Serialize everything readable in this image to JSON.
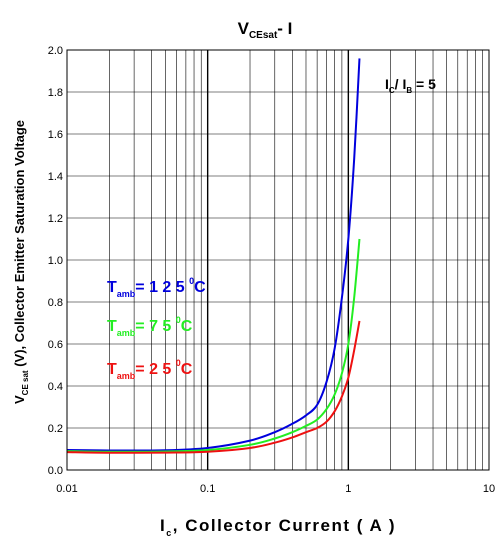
{
  "chart_data": {
    "type": "line",
    "title": {
      "main": "V",
      "sub": "CEsat",
      "rest": "- I"
    },
    "xlabel": {
      "main": "I",
      "sub": "c",
      "rest": ", Collector Current ( A )"
    },
    "ylabel": {
      "main": "V",
      "sub": "CE sat",
      "rest": " (V), Collector Emitter Saturation Voltage"
    },
    "xscale": "log",
    "xlim": [
      0.01,
      10
    ],
    "ylim": [
      0,
      2.0
    ],
    "xticks": [
      "0.01",
      "0.1",
      "1",
      "10"
    ],
    "yticks": [
      "0.0",
      "0.2",
      "0.4",
      "0.6",
      "0.8",
      "1.0",
      "1.2",
      "1.4",
      "1.6",
      "1.8",
      "2.0"
    ],
    "grid": true,
    "annotation": {
      "i1": "I",
      "s1": "C",
      "sep": "/ I",
      "s2": "B",
      "rest": " = 5"
    },
    "series": [
      {
        "name": "125",
        "color": "#0000dd",
        "label": {
          "t": "T",
          "sub": "amb",
          "val": "= 1 2 5 ",
          "deg": "0",
          "unit": "C"
        },
        "points": [
          [
            0.01,
            0.095
          ],
          [
            0.02,
            0.093
          ],
          [
            0.05,
            0.094
          ],
          [
            0.1,
            0.105
          ],
          [
            0.2,
            0.14
          ],
          [
            0.3,
            0.18
          ],
          [
            0.4,
            0.22
          ],
          [
            0.5,
            0.26
          ],
          [
            0.6,
            0.31
          ],
          [
            0.7,
            0.42
          ],
          [
            0.8,
            0.58
          ],
          [
            0.9,
            0.82
          ],
          [
            1.0,
            1.1
          ],
          [
            1.1,
            1.48
          ],
          [
            1.2,
            1.96
          ]
        ]
      },
      {
        "name": "75",
        "color": "#22ee22",
        "label": {
          "t": "T",
          "sub": "amb",
          "val": "=  7 5 ",
          "deg": "0",
          "unit": "C"
        },
        "points": [
          [
            0.01,
            0.09
          ],
          [
            0.02,
            0.087
          ],
          [
            0.05,
            0.088
          ],
          [
            0.1,
            0.095
          ],
          [
            0.2,
            0.12
          ],
          [
            0.3,
            0.15
          ],
          [
            0.4,
            0.18
          ],
          [
            0.5,
            0.21
          ],
          [
            0.6,
            0.24
          ],
          [
            0.7,
            0.29
          ],
          [
            0.8,
            0.36
          ],
          [
            0.9,
            0.46
          ],
          [
            1.0,
            0.6
          ],
          [
            1.1,
            0.82
          ],
          [
            1.2,
            1.1
          ]
        ]
      },
      {
        "name": "25",
        "color": "#ee1111",
        "label": {
          "t": "T",
          "sub": "amb",
          "val": "=  2 5 ",
          "deg": "0",
          "unit": "C"
        },
        "points": [
          [
            0.01,
            0.085
          ],
          [
            0.02,
            0.082
          ],
          [
            0.05,
            0.083
          ],
          [
            0.1,
            0.087
          ],
          [
            0.2,
            0.105
          ],
          [
            0.3,
            0.13
          ],
          [
            0.4,
            0.155
          ],
          [
            0.5,
            0.18
          ],
          [
            0.6,
            0.2
          ],
          [
            0.7,
            0.23
          ],
          [
            0.8,
            0.28
          ],
          [
            0.9,
            0.35
          ],
          [
            1.0,
            0.44
          ],
          [
            1.1,
            0.57
          ],
          [
            1.2,
            0.71
          ]
        ]
      }
    ]
  }
}
